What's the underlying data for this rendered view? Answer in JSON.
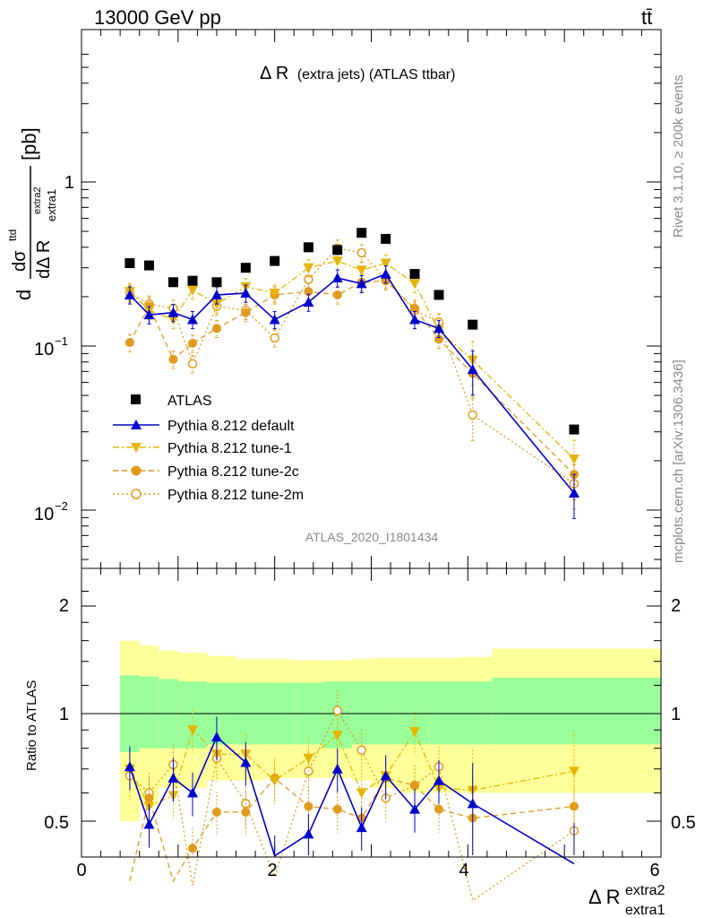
{
  "header": {
    "energy": "13000 GeV pp",
    "process": "tt̄"
  },
  "plot": {
    "title_main": "Δ R",
    "title_sub": "(extra jets) (ATLAS ttbar)",
    "analysis_id": "ATLAS_2020_I1801434",
    "side_label_top": "Rivet 3.1.10, ≥ 200k events",
    "side_label_bottom": "mcplots.cern.ch [arXiv:1306.3436]",
    "ylabel_top": {
      "d": "d",
      "num": "dσ",
      "num_sup": "ttd",
      "den": "dΔ R",
      "den_sub": "extra1",
      "den_sup": "extra2",
      "unit": "[pb]"
    },
    "ylabel_bottom": "Ratio to ATLAS",
    "xlabel": {
      "main": "Δ R",
      "sub": "extra1",
      "sup": "extra2"
    },
    "x_ticks": [
      "0",
      "2",
      "4",
      "6"
    ],
    "y_ticks_top": {
      "one": "1",
      "m1_base": "10",
      "m1_exp": "−1",
      "m2_base": "10",
      "m2_exp": "−2"
    },
    "y_ticks_ratio": [
      "2",
      "1",
      "0.5"
    ]
  },
  "chart_data": [
    {
      "type": "scatter",
      "title": "Δ R (extra jets) (ATLAS ttbar)",
      "xlabel": "Δ R extra1 extra2",
      "ylabel": "dσttd / dΔ R extra1 extra2 [pb]",
      "xlim": [
        0,
        6
      ],
      "ylim": [
        0.0045,
        7.0
      ],
      "log_y": true,
      "legend_position": "lower-left",
      "x": [
        0.5,
        0.7,
        0.95,
        1.15,
        1.4,
        1.7,
        2.0,
        2.35,
        2.65,
        2.9,
        3.15,
        3.45,
        3.7,
        4.05,
        5.1
      ],
      "series": [
        {
          "name": "ATLAS",
          "color": "#000000",
          "marker": "square",
          "values": [
            0.32,
            0.31,
            0.245,
            0.25,
            0.245,
            0.3,
            0.33,
            0.4,
            0.385,
            0.49,
            0.45,
            0.275,
            0.205,
            0.135,
            0.031
          ]
        },
        {
          "name": "Pythia 8.212 default",
          "color": "#0000cc",
          "marker": "triangle-up",
          "line": "solid",
          "values": [
            0.205,
            0.155,
            0.16,
            0.145,
            0.205,
            0.21,
            0.145,
            0.185,
            0.26,
            0.24,
            0.275,
            0.145,
            0.128,
            0.072,
            0.0127
          ]
        },
        {
          "name": "Pythia 8.212 tune-1",
          "color": "#e6b400",
          "marker": "triangle-down",
          "line": "dashdot",
          "values": [
            0.215,
            0.165,
            0.145,
            0.22,
            0.18,
            0.23,
            0.21,
            0.3,
            0.33,
            0.29,
            0.32,
            0.24,
            0.125,
            0.082,
            0.0205
          ]
        },
        {
          "name": "Pythia 8.212 tune-2c",
          "color": "#e09a1c",
          "marker": "circle",
          "line": "dashed",
          "values": [
            0.105,
            0.175,
            0.083,
            0.104,
            0.128,
            0.16,
            0.205,
            0.215,
            0.205,
            0.245,
            0.25,
            0.17,
            0.11,
            0.068,
            0.0165
          ]
        },
        {
          "name": "Pythia 8.212 tune-2m",
          "color": "#e09a1c",
          "marker": "open-circle",
          "line": "dotted",
          "values": [
            0.21,
            0.18,
            0.17,
            0.078,
            0.175,
            0.165,
            0.112,
            0.255,
            0.395,
            0.37,
            0.255,
            0.165,
            0.14,
            0.038,
            0.0145
          ]
        }
      ]
    },
    {
      "type": "line",
      "ylabel": "Ratio to ATLAS",
      "xlim": [
        0,
        6
      ],
      "ylim": [
        0.35,
        2.45
      ],
      "bands": {
        "edges": [
          0.4,
          0.6,
          0.8,
          1.0,
          1.3,
          1.6,
          1.9,
          2.2,
          2.5,
          2.8,
          3.0,
          3.3,
          3.6,
          3.9,
          4.25,
          6.0
        ],
        "inner_color": "#99ff99",
        "outer_color": "#ffff99",
        "inner": [
          [
            0.78,
            1.28
          ],
          [
            0.8,
            1.27
          ],
          [
            0.8,
            1.25
          ],
          [
            0.8,
            1.23
          ],
          [
            0.82,
            1.22
          ],
          [
            0.82,
            1.22
          ],
          [
            0.82,
            1.22
          ],
          [
            0.82,
            1.22
          ],
          [
            0.8,
            1.23
          ],
          [
            0.82,
            1.23
          ],
          [
            0.82,
            1.23
          ],
          [
            0.82,
            1.23
          ],
          [
            0.82,
            1.23
          ],
          [
            0.82,
            1.23
          ],
          [
            0.82,
            1.26
          ]
        ],
        "outer": [
          [
            0.5,
            1.6
          ],
          [
            0.55,
            1.55
          ],
          [
            0.62,
            1.5
          ],
          [
            0.62,
            1.48
          ],
          [
            0.65,
            1.45
          ],
          [
            0.65,
            1.42
          ],
          [
            0.66,
            1.42
          ],
          [
            0.66,
            1.41
          ],
          [
            0.66,
            1.41
          ],
          [
            0.65,
            1.42
          ],
          [
            0.62,
            1.43
          ],
          [
            0.6,
            1.43
          ],
          [
            0.6,
            1.43
          ],
          [
            0.6,
            1.44
          ],
          [
            0.6,
            1.52
          ]
        ]
      },
      "x": [
        0.5,
        0.7,
        0.95,
        1.15,
        1.4,
        1.7,
        2.0,
        2.35,
        2.65,
        2.9,
        3.15,
        3.45,
        3.7,
        4.05,
        5.1
      ],
      "series": [
        {
          "name": "Pythia 8.212 default",
          "color": "#0000cc",
          "values": [
            0.71,
            0.49,
            0.66,
            0.6,
            0.86,
            0.73,
            0.4,
            0.46,
            0.7,
            0.48,
            0.67,
            0.54,
            0.65,
            0.56,
            0.38
          ]
        },
        {
          "name": "Pythia 8.212 tune-1",
          "color": "#e6b400",
          "values": [
            0.7,
            0.55,
            0.59,
            0.9,
            0.77,
            0.77,
            0.65,
            0.75,
            0.87,
            0.6,
            0.67,
            0.89,
            0.62,
            0.61,
            0.69
          ]
        },
        {
          "name": "Pythia 8.212 tune-2c",
          "color": "#e09a1c",
          "values": [
            0.34,
            0.58,
            0.34,
            0.42,
            0.53,
            0.53,
            0.66,
            0.55,
            0.54,
            0.51,
            0.66,
            0.63,
            0.54,
            0.51,
            0.55
          ]
        },
        {
          "name": "Pythia 8.212 tune-2m",
          "color": "#e09a1c",
          "values": [
            0.67,
            0.6,
            0.72,
            0.33,
            0.75,
            0.56,
            0.35,
            0.69,
            1.02,
            0.79,
            0.58,
            0.63,
            0.71,
            0.3,
            0.47
          ]
        }
      ]
    }
  ]
}
